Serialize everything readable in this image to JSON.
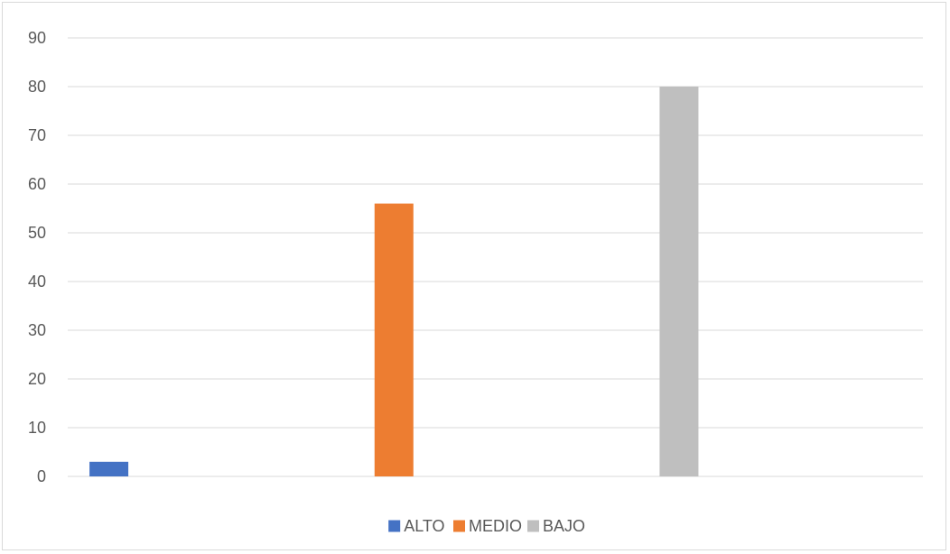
{
  "chart_data": {
    "type": "bar",
    "title": "",
    "xlabel": "",
    "ylabel": "",
    "ylim": [
      0,
      90
    ],
    "yticks": [
      0,
      10,
      20,
      30,
      40,
      50,
      60,
      70,
      80,
      90
    ],
    "grid": true,
    "legend_position": "bottom",
    "categories": [
      ""
    ],
    "series": [
      {
        "name": "ALTO",
        "values": [
          3
        ],
        "color": "#4472C4"
      },
      {
        "name": "MEDIO",
        "values": [
          56
        ],
        "color": "#ED7D31"
      },
      {
        "name": "BAJO",
        "values": [
          80
        ],
        "color": "#BFBFBF"
      }
    ]
  }
}
